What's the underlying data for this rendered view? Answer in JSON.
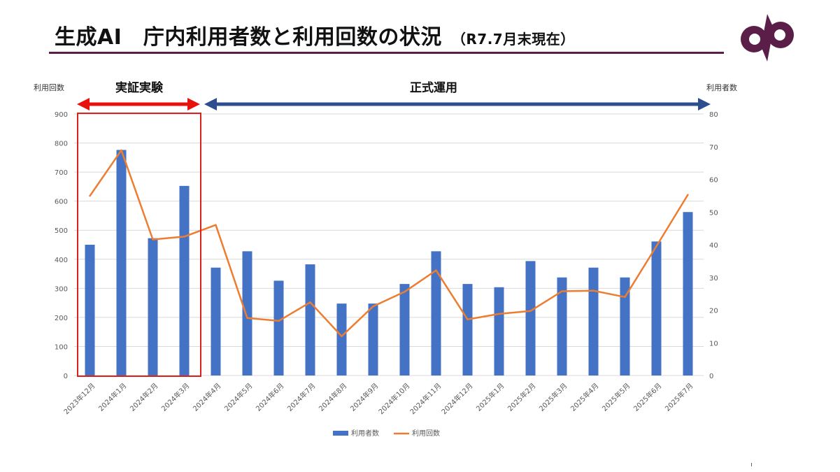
{
  "header": {
    "title": "生成AI　庁内利用者数と利用回数の状況",
    "subtitle": "（R7.7月末現在）"
  },
  "logo": {
    "icon": "city-emblem-icon",
    "color": "#5b1e48"
  },
  "colors": {
    "bars": "#4472c4",
    "line": "#ed7d31",
    "pilot_arrow": "#e8120c",
    "pilot_box": "#d9221c",
    "production_arrow": "#2e4d8f",
    "grid": "#d9d9d9"
  },
  "chart_data": {
    "type": "bar",
    "categories": [
      "2023年12月",
      "2024年1月",
      "2024年2月",
      "2024年3月",
      "2024年4月",
      "2024年5月",
      "2024年6月",
      "2024年7月",
      "2024年8月",
      "2024年9月",
      "2024年10月",
      "2024年11月",
      "2024年12月",
      "2025年1月",
      "2025年2月",
      "2025年3月",
      "2025年4月",
      "2025年5月",
      "2025年6月",
      "2025年7月"
    ],
    "left_axis": {
      "label": "利用回数",
      "ticks": [
        0,
        100,
        200,
        300,
        400,
        500,
        600,
        700,
        800,
        900
      ],
      "range": [
        0,
        900
      ]
    },
    "right_axis": {
      "label": "利用者数",
      "ticks": [
        0,
        10,
        20,
        30,
        40,
        50,
        60,
        70,
        80
      ],
      "range": [
        0,
        80
      ]
    },
    "series": [
      {
        "name": "利用者数",
        "type": "bar",
        "axis": "right",
        "values": [
          40,
          69,
          42,
          58,
          33,
          38,
          29,
          34,
          22,
          22,
          28,
          38,
          28,
          27,
          35,
          30,
          33,
          30,
          41,
          50
        ]
      },
      {
        "name": "利用回数",
        "type": "line",
        "axis": "left",
        "values": [
          618,
          775,
          468,
          478,
          518,
          198,
          188,
          252,
          135,
          238,
          288,
          362,
          193,
          212,
          222,
          290,
          292,
          270,
          445,
          622
        ]
      }
    ],
    "phases": [
      {
        "label": "実証実験",
        "start": 0,
        "end": 3
      },
      {
        "label": "正式運用",
        "start": 4,
        "end": 19
      }
    ],
    "legend": {
      "position": "bottom"
    },
    "grid": true
  }
}
